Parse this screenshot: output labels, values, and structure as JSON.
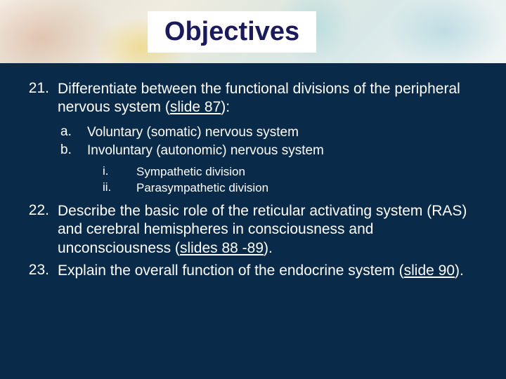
{
  "title": "Objectives",
  "items": [
    {
      "num": "21.",
      "text_before": "Differentiate between the functional divisions of the peripheral nervous system (",
      "link": "slide 87",
      "text_after": "):",
      "subs": [
        {
          "num": "a.",
          "text": "Voluntary (somatic) nervous system"
        },
        {
          "num": "b.",
          "text": "Involuntary (autonomic) nervous system",
          "subs": [
            {
              "num": "i.",
              "text": "Sympathetic division"
            },
            {
              "num": "ii.",
              "text": "Parasympathetic division"
            }
          ]
        }
      ]
    },
    {
      "num": "22.",
      "text_before": "Describe the basic role of the reticular activating system (RAS) and cerebral hemispheres in consciousness and unconsciousness (",
      "link": "slides 88 -89",
      "text_after": ")."
    },
    {
      "num": "23.",
      "text_before": "Explain the overall function of the endocrine system (",
      "link": "slide 90",
      "text_after": ")."
    }
  ],
  "colors": {
    "background": "#0a2a4a",
    "title_bg": "#ffffff",
    "title_text": "#1a1a5c",
    "body_text": "#ffffff"
  },
  "typography": {
    "title_fontsize": 38,
    "main_fontsize": 21,
    "sub_fontsize": 19,
    "subsub_fontsize": 17,
    "font_family": "Arial"
  }
}
